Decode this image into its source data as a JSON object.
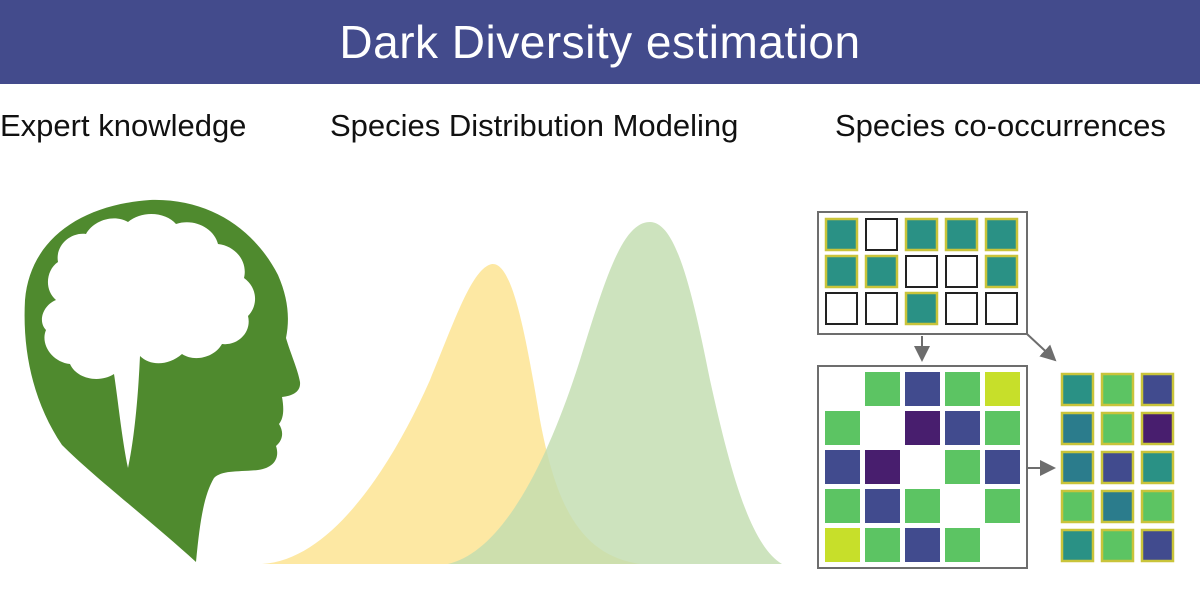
{
  "banner": {
    "title": "Dark Diversity estimation",
    "color": "#434b8c"
  },
  "methods": [
    {
      "label": "Expert knowledge",
      "icon": "head-brain-icon",
      "color": "#4f8a2e"
    },
    {
      "label": "Species Distribution Modeling",
      "icon": "distribution-curves-icon",
      "curve_colors": [
        "#fde79e",
        "#c2ddb0"
      ]
    },
    {
      "label": "Species co-occurrences",
      "icon": "co-occurrence-matrix-icon"
    }
  ],
  "matrices": {
    "site_species": [
      [
        "teal",
        "empty",
        "teal",
        "teal",
        "teal"
      ],
      [
        "teal",
        "teal",
        "empty",
        "empty",
        "teal"
      ],
      [
        "empty",
        "empty",
        "teal",
        "empty",
        "empty"
      ]
    ],
    "co_occurrence": [
      [
        "none",
        "green",
        "blue",
        "green",
        "lime"
      ],
      [
        "green",
        "none",
        "purple",
        "blue",
        "green"
      ],
      [
        "blue",
        "purple",
        "none",
        "green",
        "blue"
      ],
      [
        "green",
        "blue",
        "green",
        "none",
        "green"
      ],
      [
        "lime",
        "green",
        "blue",
        "green",
        "none"
      ]
    ],
    "result": [
      [
        "teal",
        "green",
        "blue"
      ],
      [
        "dteal",
        "green",
        "purple"
      ],
      [
        "dteal",
        "blue",
        "teal"
      ],
      [
        "green",
        "dteal",
        "green"
      ],
      [
        "teal",
        "green",
        "blue"
      ]
    ],
    "palette": {
      "teal": "#2a9185",
      "dteal": "#2b7c8c",
      "green": "#5cc463",
      "lime": "#c7df2a",
      "blue": "#414b8e",
      "purple": "#481e6e",
      "outline_yellow": "#c9c43a",
      "frame": "#6d6d6d"
    }
  }
}
